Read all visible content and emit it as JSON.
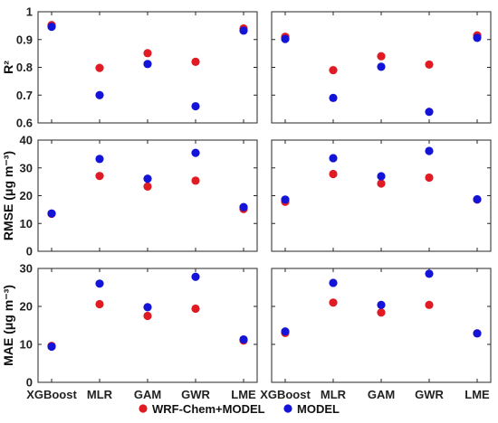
{
  "colors": {
    "wrf": "#e01b24",
    "model": "#1414d9"
  },
  "legend": {
    "labels": [
      "WRF-Chem+MODEL",
      "MODEL"
    ]
  },
  "chart_data": {
    "type": "scatter",
    "grid": false,
    "categories": [
      "XGBoost",
      "MLR",
      "GAM",
      "GWR",
      "LME"
    ],
    "series_names": [
      "WRF-Chem+MODEL",
      "MODEL"
    ],
    "legend_position": "bottom",
    "rows": [
      {
        "ylabel": "R²",
        "ylim": [
          0.6,
          1
        ],
        "yticks": [
          "0.6",
          "0.7",
          "0.8",
          "0.9",
          "1"
        ],
        "panels": [
          {
            "series": [
              {
                "values": [
                  0.952,
                  0.798,
                  0.851,
                  0.82,
                  0.94
                ]
              },
              {
                "values": [
                  0.946,
                  0.7,
                  0.812,
                  0.66,
                  0.932
                ]
              }
            ]
          },
          {
            "series": [
              {
                "values": [
                  0.91,
                  0.79,
                  0.84,
                  0.81,
                  0.915
                ]
              },
              {
                "values": [
                  0.902,
                  0.69,
                  0.802,
                  0.64,
                  0.906
                ]
              }
            ]
          }
        ]
      },
      {
        "ylabel": "RMSE (μg m⁻³)",
        "ylim": [
          0,
          40
        ],
        "yticks": [
          "0",
          "10",
          "20",
          "30",
          "40"
        ],
        "panels": [
          {
            "series": [
              {
                "values": [
                  13.5,
                  27.1,
                  23.3,
                  25.4,
                  15.2
                ]
              },
              {
                "values": [
                  13.6,
                  33.2,
                  26.1,
                  35.4,
                  15.9
                ]
              }
            ]
          },
          {
            "series": [
              {
                "values": [
                  17.8,
                  27.8,
                  24.4,
                  26.5,
                  18.6
                ]
              },
              {
                "values": [
                  18.6,
                  33.5,
                  27.0,
                  36.1,
                  18.7
                ]
              }
            ]
          }
        ]
      },
      {
        "ylabel": "MAE (μg m⁻³)",
        "ylim": [
          0,
          30
        ],
        "yticks": [
          "0",
          "10",
          "20",
          "30"
        ],
        "panels": [
          {
            "series": [
              {
                "values": [
                  9.6,
                  20.6,
                  17.5,
                  19.4,
                  11.0
                ]
              },
              {
                "values": [
                  9.4,
                  26.0,
                  19.8,
                  27.8,
                  11.3
                ]
              }
            ]
          },
          {
            "series": [
              {
                "values": [
                  13.0,
                  21.0,
                  18.4,
                  20.4,
                  12.9
                ]
              },
              {
                "values": [
                  13.4,
                  26.2,
                  20.4,
                  28.6,
                  12.9
                ]
              }
            ]
          }
        ]
      }
    ]
  }
}
